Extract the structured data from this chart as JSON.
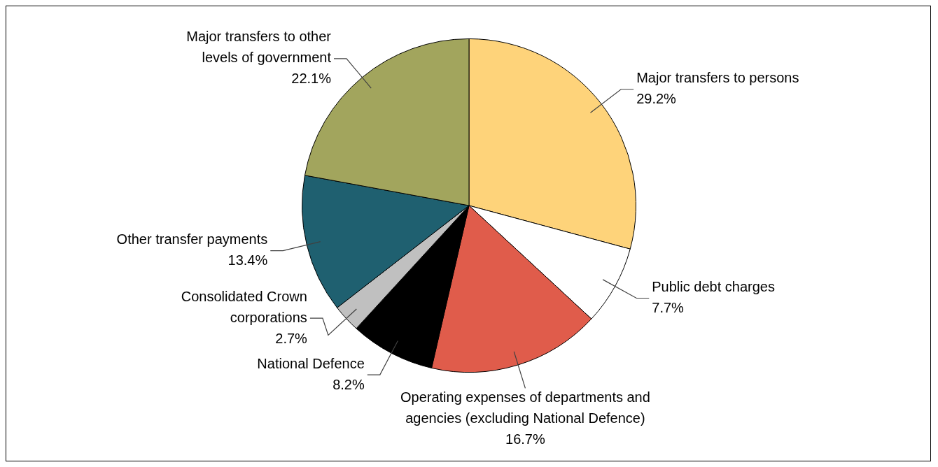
{
  "chart_data": {
    "type": "pie",
    "categories": [
      "Major transfers to persons",
      "Public debt charges",
      "Operating expenses of departments and agencies (excluding National Defence)",
      "National Defence",
      "Consolidated Crown corporations",
      "Other transfer payments",
      "Major transfers to other levels of government"
    ],
    "values": [
      29.2,
      7.7,
      16.7,
      8.2,
      2.7,
      13.4,
      22.1
    ],
    "colors": [
      "#fed37a",
      "#ffffff",
      "#e05c4b",
      "#000000",
      "#c0c0c0",
      "#1f6070",
      "#a2a55d"
    ],
    "value_labels": [
      "29.2%",
      "7.7%",
      "16.7%",
      "8.2%",
      "2.7%",
      "13.4%",
      "22.1%"
    ],
    "legend": false
  }
}
